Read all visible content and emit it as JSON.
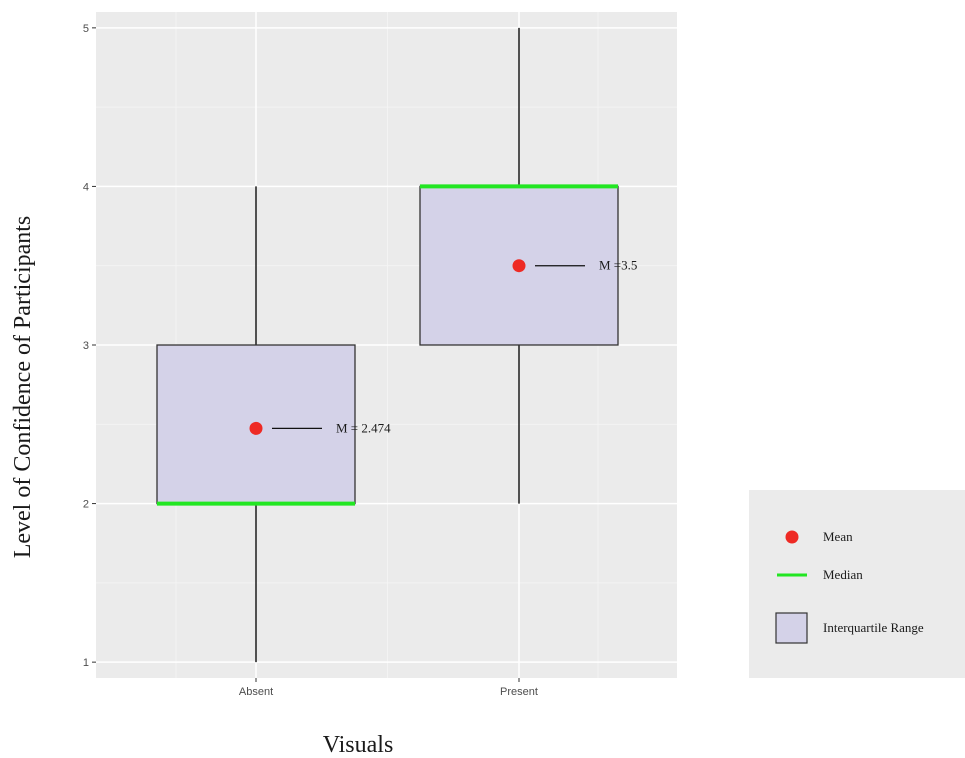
{
  "chart_data": {
    "type": "boxplot",
    "xlabel": "Visuals",
    "ylabel": "Level of Confidence of Participants",
    "ylim": [
      0.9,
      5.1
    ],
    "yticks": [
      "1",
      "2",
      "3",
      "4",
      "5"
    ],
    "categories": [
      "Absent",
      "Present"
    ],
    "boxes": [
      {
        "category": "Absent",
        "min": 1,
        "q1": 2,
        "median": 2,
        "q3": 3,
        "max": 4,
        "mean": 2.474,
        "mean_label": "M = 2.474"
      },
      {
        "category": "Present",
        "min": 2,
        "q1": 3,
        "median": 4,
        "q3": 4,
        "max": 5,
        "mean": 3.5,
        "mean_label": "M =3.5"
      }
    ],
    "grid": true,
    "legend_position": "bottom-right",
    "legend": [
      {
        "key": "mean",
        "label": "Mean"
      },
      {
        "key": "median",
        "label": "Median"
      },
      {
        "key": "iqr",
        "label": "Interquartile Range"
      }
    ],
    "colors": {
      "panel": "#ebebeb",
      "grid": "#ffffff",
      "box_fill": "#d4d2e8",
      "box_border": "#333333",
      "median": "#22e622",
      "mean": "#ee2a24",
      "whisker": "#1a1a1a",
      "legend_bg": "#ebebeb"
    }
  }
}
